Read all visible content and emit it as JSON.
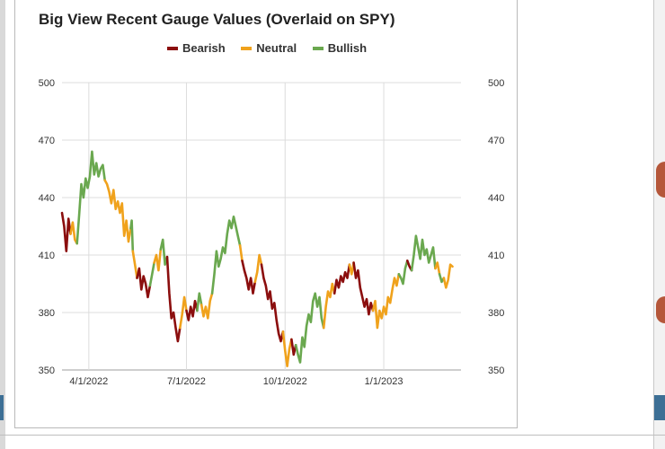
{
  "chart_data": {
    "type": "line",
    "title": "Big View Recent Gauge Values (Overlaid on SPY)",
    "xlabel": "",
    "ylabel": "",
    "ylim": [
      350,
      500
    ],
    "yticks": [
      350,
      380,
      410,
      440,
      470,
      500
    ],
    "yticks_right": true,
    "grid": true,
    "legend_position": "top-center",
    "x_tick_labels": [
      {
        "date": "2022-04-01",
        "label": "4/1/2022"
      },
      {
        "date": "2022-07-01",
        "label": "7/1/2022"
      },
      {
        "date": "2022-10-01",
        "label": "10/1/2022"
      },
      {
        "date": "2023-01-01",
        "label": "1/1/2023"
      }
    ],
    "x_range": [
      "2022-03-07",
      "2023-03-14"
    ],
    "series": [
      {
        "name": "Bearish",
        "color": "#8b0e0e"
      },
      {
        "name": "Neutral",
        "color": "#f0a21c"
      },
      {
        "name": "Bullish",
        "color": "#6aa84f"
      }
    ],
    "segments": [
      {
        "gauge": "Bearish",
        "points": [
          [
            "2022-03-07",
            432
          ],
          [
            "2022-03-09",
            425
          ],
          [
            "2022-03-11",
            412
          ],
          [
            "2022-03-13",
            429
          ],
          [
            "2022-03-15",
            421
          ]
        ]
      },
      {
        "gauge": "Neutral",
        "points": [
          [
            "2022-03-15",
            421
          ],
          [
            "2022-03-17",
            427
          ],
          [
            "2022-03-19",
            418
          ],
          [
            "2022-03-21",
            416
          ]
        ]
      },
      {
        "gauge": "Bullish",
        "points": [
          [
            "2022-03-21",
            416
          ],
          [
            "2022-03-23",
            431
          ],
          [
            "2022-03-25",
            447
          ],
          [
            "2022-03-27",
            440
          ],
          [
            "2022-03-29",
            450
          ],
          [
            "2022-03-31",
            445
          ],
          [
            "2022-04-02",
            451
          ],
          [
            "2022-04-04",
            464
          ],
          [
            "2022-04-06",
            452
          ],
          [
            "2022-04-08",
            458
          ],
          [
            "2022-04-10",
            451
          ],
          [
            "2022-04-12",
            455
          ],
          [
            "2022-04-14",
            457
          ],
          [
            "2022-04-16",
            449
          ]
        ]
      },
      {
        "gauge": "Neutral",
        "points": [
          [
            "2022-04-16",
            449
          ],
          [
            "2022-04-18",
            447
          ],
          [
            "2022-04-20",
            443
          ],
          [
            "2022-04-22",
            437
          ],
          [
            "2022-04-24",
            444
          ],
          [
            "2022-04-26",
            434
          ],
          [
            "2022-04-28",
            438
          ],
          [
            "2022-04-30",
            432
          ],
          [
            "2022-05-02",
            437
          ],
          [
            "2022-05-04",
            420
          ],
          [
            "2022-05-06",
            428
          ],
          [
            "2022-05-08",
            417
          ],
          [
            "2022-05-10",
            424
          ]
        ]
      },
      {
        "gauge": "Bullish",
        "points": [
          [
            "2022-05-10",
            424
          ],
          [
            "2022-05-11",
            428
          ],
          [
            "2022-05-12",
            412
          ]
        ]
      },
      {
        "gauge": "Neutral",
        "points": [
          [
            "2022-05-12",
            412
          ],
          [
            "2022-05-14",
            405
          ],
          [
            "2022-05-16",
            398
          ]
        ]
      },
      {
        "gauge": "Bearish",
        "points": [
          [
            "2022-05-16",
            398
          ],
          [
            "2022-05-18",
            403
          ],
          [
            "2022-05-20",
            392
          ],
          [
            "2022-05-22",
            399
          ],
          [
            "2022-05-24",
            395
          ],
          [
            "2022-05-26",
            388
          ],
          [
            "2022-05-28",
            394
          ]
        ]
      },
      {
        "gauge": "Bullish",
        "points": [
          [
            "2022-05-28",
            394
          ],
          [
            "2022-05-30",
            400
          ],
          [
            "2022-06-01",
            406
          ]
        ]
      },
      {
        "gauge": "Neutral",
        "points": [
          [
            "2022-06-01",
            406
          ],
          [
            "2022-06-03",
            410
          ],
          [
            "2022-06-05",
            402
          ],
          [
            "2022-06-07",
            413
          ]
        ]
      },
      {
        "gauge": "Bullish",
        "points": [
          [
            "2022-06-07",
            413
          ],
          [
            "2022-06-09",
            418
          ],
          [
            "2022-06-11",
            405
          ],
          [
            "2022-06-13",
            409
          ]
        ]
      },
      {
        "gauge": "Bearish",
        "points": [
          [
            "2022-06-13",
            409
          ],
          [
            "2022-06-15",
            390
          ],
          [
            "2022-06-17",
            377
          ],
          [
            "2022-06-19",
            380
          ],
          [
            "2022-06-21",
            372
          ],
          [
            "2022-06-23",
            365
          ],
          [
            "2022-06-25",
            372
          ]
        ]
      },
      {
        "gauge": "Neutral",
        "points": [
          [
            "2022-06-25",
            372
          ],
          [
            "2022-06-27",
            379
          ],
          [
            "2022-06-29",
            388
          ],
          [
            "2022-07-01",
            381
          ]
        ]
      },
      {
        "gauge": "Bearish",
        "points": [
          [
            "2022-07-01",
            381
          ],
          [
            "2022-07-03",
            376
          ],
          [
            "2022-07-05",
            383
          ],
          [
            "2022-07-07",
            378
          ],
          [
            "2022-07-09",
            386
          ],
          [
            "2022-07-11",
            381
          ]
        ]
      },
      {
        "gauge": "Bullish",
        "points": [
          [
            "2022-07-11",
            381
          ],
          [
            "2022-07-13",
            390
          ],
          [
            "2022-07-15",
            384
          ]
        ]
      },
      {
        "gauge": "Neutral",
        "points": [
          [
            "2022-07-15",
            384
          ],
          [
            "2022-07-17",
            378
          ],
          [
            "2022-07-19",
            383
          ],
          [
            "2022-07-21",
            377
          ],
          [
            "2022-07-23",
            386
          ],
          [
            "2022-07-25",
            390
          ]
        ]
      },
      {
        "gauge": "Bullish",
        "points": [
          [
            "2022-07-25",
            390
          ],
          [
            "2022-07-27",
            400
          ],
          [
            "2022-07-29",
            412
          ],
          [
            "2022-07-31",
            404
          ],
          [
            "2022-08-02",
            408
          ],
          [
            "2022-08-04",
            414
          ],
          [
            "2022-08-06",
            411
          ],
          [
            "2022-08-08",
            421
          ],
          [
            "2022-08-10",
            428
          ],
          [
            "2022-08-12",
            424
          ],
          [
            "2022-08-14",
            430
          ],
          [
            "2022-08-16",
            425
          ],
          [
            "2022-08-18",
            420
          ],
          [
            "2022-08-20",
            415
          ]
        ]
      },
      {
        "gauge": "Neutral",
        "points": [
          [
            "2022-08-20",
            415
          ],
          [
            "2022-08-22",
            407
          ]
        ]
      },
      {
        "gauge": "Bearish",
        "points": [
          [
            "2022-08-22",
            407
          ],
          [
            "2022-08-24",
            402
          ],
          [
            "2022-08-26",
            398
          ],
          [
            "2022-08-28",
            392
          ],
          [
            "2022-08-30",
            398
          ],
          [
            "2022-09-01",
            390
          ],
          [
            "2022-09-03",
            396
          ]
        ]
      },
      {
        "gauge": "Neutral",
        "points": [
          [
            "2022-09-03",
            396
          ],
          [
            "2022-09-05",
            401
          ],
          [
            "2022-09-07",
            410
          ],
          [
            "2022-09-09",
            405
          ]
        ]
      },
      {
        "gauge": "Bearish",
        "points": [
          [
            "2022-09-09",
            405
          ],
          [
            "2022-09-11",
            398
          ],
          [
            "2022-09-13",
            394
          ],
          [
            "2022-09-15",
            387
          ],
          [
            "2022-09-17",
            391
          ],
          [
            "2022-09-19",
            382
          ],
          [
            "2022-09-21",
            385
          ],
          [
            "2022-09-23",
            376
          ],
          [
            "2022-09-25",
            369
          ],
          [
            "2022-09-27",
            365
          ],
          [
            "2022-09-29",
            370
          ]
        ]
      },
      {
        "gauge": "Neutral",
        "points": [
          [
            "2022-09-29",
            370
          ],
          [
            "2022-10-01",
            360
          ],
          [
            "2022-10-03",
            352
          ],
          [
            "2022-10-05",
            361
          ],
          [
            "2022-10-07",
            366
          ]
        ]
      },
      {
        "gauge": "Bearish",
        "points": [
          [
            "2022-10-07",
            366
          ],
          [
            "2022-10-09",
            358
          ],
          [
            "2022-10-11",
            363
          ]
        ]
      },
      {
        "gauge": "Bullish",
        "points": [
          [
            "2022-10-11",
            363
          ],
          [
            "2022-10-13",
            358
          ],
          [
            "2022-10-15",
            354
          ],
          [
            "2022-10-17",
            367
          ],
          [
            "2022-10-19",
            362
          ],
          [
            "2022-10-21",
            373
          ],
          [
            "2022-10-23",
            379
          ],
          [
            "2022-10-25",
            375
          ],
          [
            "2022-10-27",
            386
          ],
          [
            "2022-10-29",
            390
          ],
          [
            "2022-10-31",
            383
          ],
          [
            "2022-11-02",
            388
          ],
          [
            "2022-11-04",
            377
          ],
          [
            "2022-11-06",
            372
          ]
        ]
      },
      {
        "gauge": "Neutral",
        "points": [
          [
            "2022-11-06",
            372
          ],
          [
            "2022-11-08",
            383
          ],
          [
            "2022-11-10",
            391
          ],
          [
            "2022-11-12",
            388
          ],
          [
            "2022-11-14",
            395
          ],
          [
            "2022-11-16",
            390
          ]
        ]
      },
      {
        "gauge": "Bearish",
        "points": [
          [
            "2022-11-16",
            390
          ],
          [
            "2022-11-18",
            397
          ],
          [
            "2022-11-20",
            393
          ],
          [
            "2022-11-22",
            399
          ],
          [
            "2022-11-24",
            396
          ],
          [
            "2022-11-26",
            401
          ],
          [
            "2022-11-28",
            398
          ],
          [
            "2022-11-30",
            405
          ]
        ]
      },
      {
        "gauge": "Neutral",
        "points": [
          [
            "2022-11-30",
            405
          ],
          [
            "2022-12-02",
            400
          ],
          [
            "2022-12-04",
            406
          ]
        ]
      },
      {
        "gauge": "Bearish",
        "points": [
          [
            "2022-12-04",
            406
          ],
          [
            "2022-12-06",
            398
          ],
          [
            "2022-12-08",
            402
          ],
          [
            "2022-12-10",
            393
          ],
          [
            "2022-12-12",
            388
          ],
          [
            "2022-12-14",
            383
          ],
          [
            "2022-12-16",
            387
          ],
          [
            "2022-12-18",
            379
          ],
          [
            "2022-12-20",
            385
          ],
          [
            "2022-12-22",
            381
          ]
        ]
      },
      {
        "gauge": "Neutral",
        "points": [
          [
            "2022-12-22",
            381
          ],
          [
            "2022-12-24",
            386
          ],
          [
            "2022-12-26",
            372
          ],
          [
            "2022-12-28",
            381
          ],
          [
            "2022-12-30",
            377
          ],
          [
            "2023-01-01",
            383
          ],
          [
            "2023-01-03",
            379
          ],
          [
            "2023-01-05",
            388
          ],
          [
            "2023-01-07",
            385
          ],
          [
            "2023-01-09",
            392
          ],
          [
            "2023-01-11",
            398
          ],
          [
            "2023-01-13",
            394
          ],
          [
            "2023-01-15",
            400
          ]
        ]
      },
      {
        "gauge": "Bullish",
        "points": [
          [
            "2023-01-15",
            400
          ],
          [
            "2023-01-17",
            398
          ],
          [
            "2023-01-19",
            395
          ],
          [
            "2023-01-21",
            403
          ],
          [
            "2023-01-23",
            407
          ]
        ]
      },
      {
        "gauge": "Bearish",
        "points": [
          [
            "2023-01-23",
            407
          ],
          [
            "2023-01-25",
            404
          ],
          [
            "2023-01-27",
            402
          ]
        ]
      },
      {
        "gauge": "Bullish",
        "points": [
          [
            "2023-01-27",
            402
          ],
          [
            "2023-01-29",
            410
          ],
          [
            "2023-01-31",
            420
          ],
          [
            "2023-02-02",
            414
          ],
          [
            "2023-02-04",
            408
          ],
          [
            "2023-02-06",
            418
          ],
          [
            "2023-02-08",
            410
          ],
          [
            "2023-02-10",
            413
          ],
          [
            "2023-02-12",
            406
          ],
          [
            "2023-02-14",
            410
          ],
          [
            "2023-02-16",
            414
          ],
          [
            "2023-02-18",
            403
          ]
        ]
      },
      {
        "gauge": "Neutral",
        "points": [
          [
            "2023-02-18",
            403
          ],
          [
            "2023-02-20",
            406
          ],
          [
            "2023-02-22",
            400
          ]
        ]
      },
      {
        "gauge": "Bullish",
        "points": [
          [
            "2023-02-22",
            400
          ],
          [
            "2023-02-24",
            396
          ],
          [
            "2023-02-26",
            398
          ]
        ]
      },
      {
        "gauge": "Neutral",
        "points": [
          [
            "2023-02-26",
            398
          ],
          [
            "2023-02-28",
            393
          ],
          [
            "2023-03-02",
            397
          ],
          [
            "2023-03-04",
            405
          ],
          [
            "2023-03-06",
            404
          ]
        ]
      }
    ]
  }
}
